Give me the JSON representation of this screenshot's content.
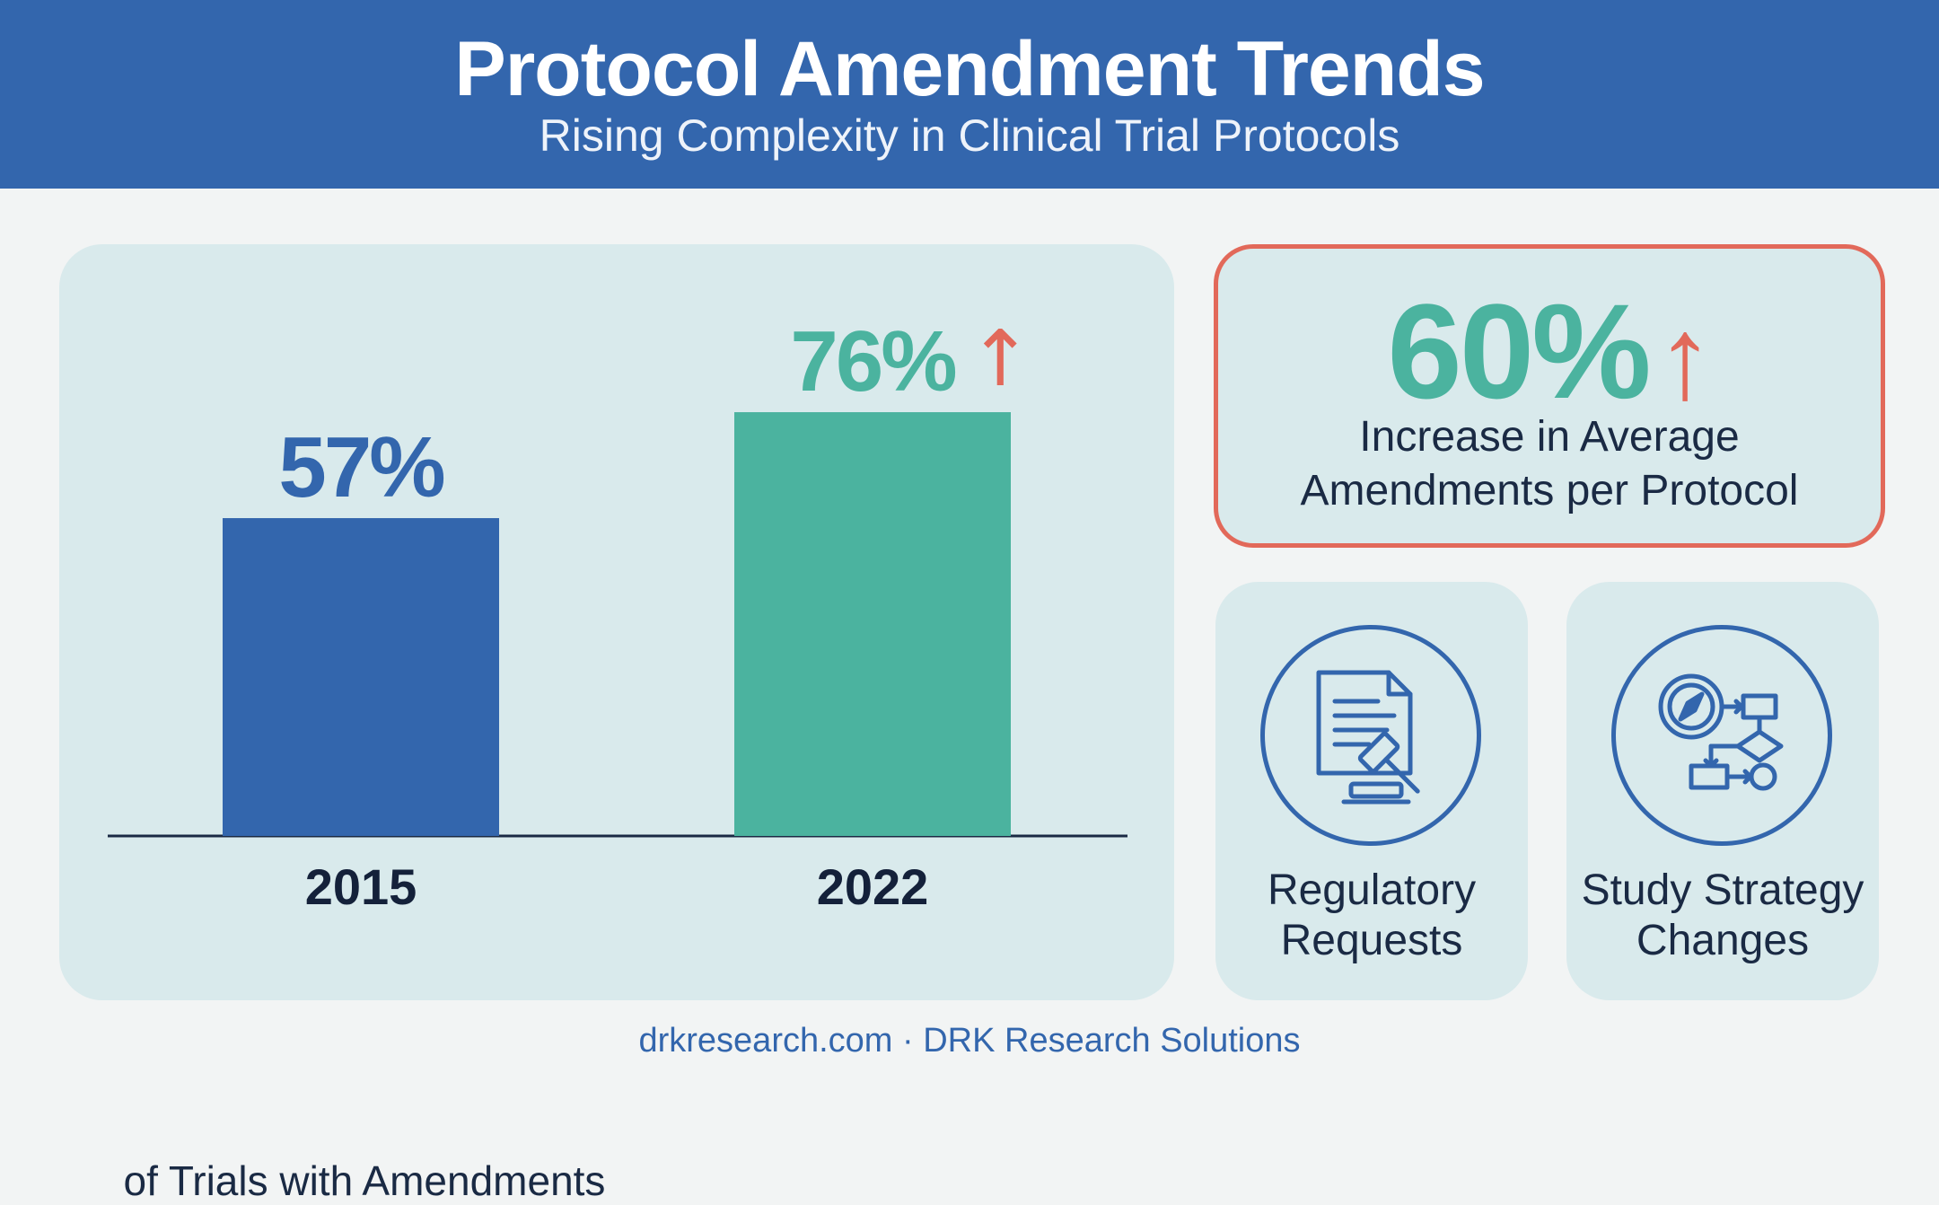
{
  "header": {
    "title": "Protocol Amendment Trends",
    "subtitle": "Rising Complexity in Clinical Trial Protocols"
  },
  "chart_data": {
    "type": "bar",
    "categories": [
      "2015",
      "2022"
    ],
    "values": [
      57,
      76
    ],
    "value_labels": [
      "57%",
      "76%"
    ],
    "caption": "of Trials with Amendments",
    "colors": [
      "#3366ad",
      "#4bb39f"
    ],
    "increase_marker": "↑",
    "ylim": [
      0,
      100
    ],
    "grid": false
  },
  "stat": {
    "value": "60%",
    "arrow": "↑",
    "label_line1": "Increase in Average",
    "label_line2": "Amendments per Protocol"
  },
  "factors": [
    {
      "icon": "regulatory-document-gavel-icon",
      "line1": "Regulatory",
      "line2": "Requests"
    },
    {
      "icon": "strategy-flowchart-compass-icon",
      "line1": "Study Strategy",
      "line2": "Changes"
    }
  ],
  "footer": "drkresearch.com · DRK Research Solutions",
  "colors": {
    "primary": "#3366ad",
    "teal": "#4bb39f",
    "accent": "#e2695a",
    "panel": "#d9eaec",
    "text": "#1a2a44"
  }
}
